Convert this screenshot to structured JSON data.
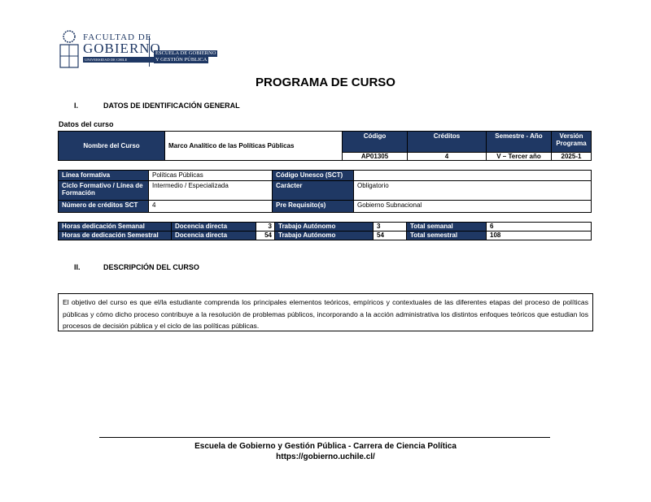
{
  "logo": {
    "line1": "FACULTAD DE",
    "line2": "GOBIERNO",
    "line3": "UNIVERSIDAD DE CHILE",
    "school1": "ESCUELA DE GOBIERNO",
    "school2": "Y GESTIÓN PÚBLICA"
  },
  "title": "PROGRAMA DE CURSO",
  "section1": {
    "num": "I.",
    "title": "DATOS DE IDENTIFICACIÓN GENERAL"
  },
  "subtitle": "Datos del curso",
  "course": {
    "name_label": "Nombre del Curso",
    "name": "Marco Analítico de las Políticas Públicas",
    "code_label": "Código",
    "code": "AP01305",
    "credits_label": "Créditos",
    "credits": "4",
    "semester_label": "Semestre - Año",
    "semester": "V – Tercer año",
    "version_label": "Versión Programa",
    "version": "2025-1"
  },
  "info": {
    "linea_label": "Línea formativa",
    "linea": "Políticas Públicas",
    "unesco_label": "Código Unesco (SCT)",
    "unesco": "",
    "ciclo_label": "Ciclo Formativo / Línea de Formación",
    "ciclo": "Intermedio / Especializada",
    "caracter_label": "Carácter",
    "caracter": "Obligatorio",
    "sct_label": "Número de créditos SCT",
    "sct": "4",
    "prereq_label": "Pre Requisito(s)",
    "prereq": "Gobierno Subnacional"
  },
  "hours": [
    {
      "label": "Horas dedicación Semanal",
      "direct_label": "Docencia directa",
      "direct": "3",
      "auto_label": "Trabajo Autónomo",
      "auto": "3",
      "total_label": "Total semanal",
      "total": "6"
    },
    {
      "label": "Horas de dedicación Semestral",
      "direct_label": "Docencia directa",
      "direct": "54",
      "auto_label": "Trabajo Autónomo",
      "auto": "54",
      "total_label": "Total semestral",
      "total": "108"
    }
  ],
  "section2": {
    "num": "II.",
    "title": "DESCRIPCIÓN DEL CURSO"
  },
  "description": "El objetivo del curso es que el/la estudiante comprenda los principales elementos teóricos, empíricos y contextuales de las diferentes etapas del proceso de políticas públicas y cómo dicho proceso contribuye a la resolución de problemas públicos, incorporando a la acción administrativa los distintos enfoques teóricos que estudian los procesos de decisión pública y el ciclo de las políticas públicas.",
  "footer": {
    "line1": "Escuela de Gobierno y Gestión Pública - Carrera de Ciencia Política",
    "line2": "https://gobierno.uchile.cl/"
  }
}
